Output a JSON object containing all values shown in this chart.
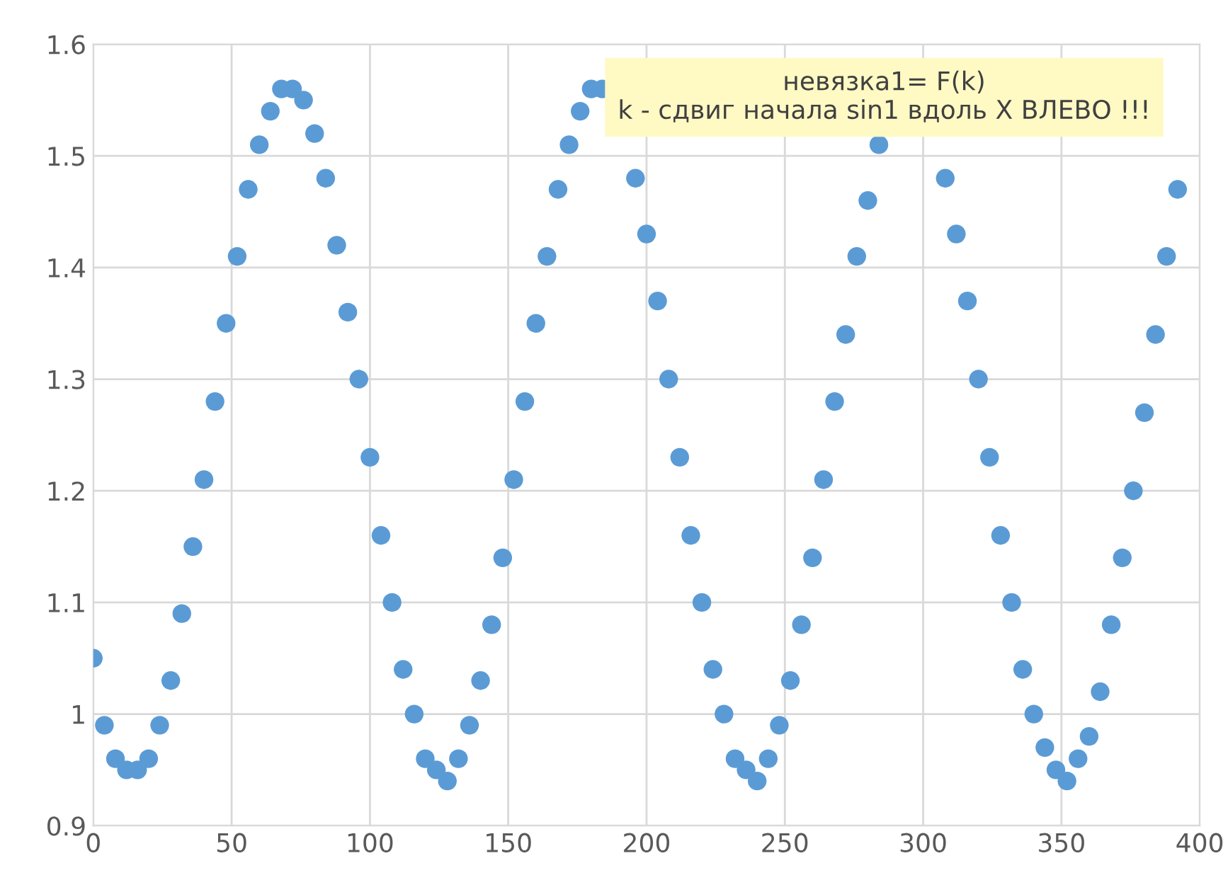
{
  "chart_data": {
    "type": "scatter",
    "annotations": [
      "невязка1= F(k)\nk - сдвиг начала sin1 вдоль X ВЛЕВО !!!"
    ],
    "x": [
      0,
      4,
      8,
      12,
      16,
      20,
      24,
      28,
      32,
      36,
      40,
      44,
      48,
      52,
      56,
      60,
      64,
      68,
      72,
      76,
      80,
      84,
      88,
      92,
      96,
      100,
      104,
      108,
      112,
      116,
      120,
      124,
      128,
      132,
      136,
      140,
      144,
      148,
      152,
      156,
      160,
      164,
      168,
      172,
      176,
      180,
      184,
      188,
      192,
      196,
      200,
      204,
      208,
      212,
      216,
      220,
      224,
      228,
      232,
      236,
      240,
      244,
      248,
      252,
      256,
      260,
      264,
      268,
      272,
      276,
      280,
      284,
      288,
      292,
      296,
      300,
      304,
      308,
      312,
      316,
      320,
      324,
      328,
      332,
      336,
      340,
      344,
      348,
      352,
      356,
      360,
      364,
      368,
      372,
      376,
      380,
      384,
      388,
      392
    ],
    "series": [
      {
        "color": "#5b9bd5",
        "values": [
          1.05,
          0.99,
          0.96,
          0.95,
          0.95,
          0.96,
          0.99,
          1.03,
          1.09,
          1.15,
          1.21,
          1.28,
          1.35,
          1.41,
          1.47,
          1.51,
          1.54,
          1.56,
          1.56,
          1.55,
          1.52,
          1.48,
          1.42,
          1.36,
          1.3,
          1.23,
          1.16,
          1.1,
          1.04,
          1.0,
          0.96,
          0.95,
          0.94,
          0.96,
          0.99,
          1.03,
          1.08,
          1.14,
          1.21,
          1.28,
          1.35,
          1.41,
          1.47,
          1.51,
          1.54,
          1.56,
          1.56,
          null,
          null,
          1.48,
          1.43,
          1.37,
          1.3,
          1.23,
          1.16,
          1.1,
          1.04,
          1.0,
          0.96,
          0.95,
          0.94,
          0.96,
          0.99,
          1.03,
          1.08,
          1.14,
          1.21,
          1.28,
          1.34,
          1.41,
          1.46,
          1.51,
          null,
          null,
          null,
          null,
          null,
          1.48,
          1.43,
          1.37,
          1.3,
          1.23,
          1.16,
          1.1,
          1.04,
          1.0,
          0.97,
          0.95,
          0.94,
          0.96,
          0.98,
          1.02,
          1.08,
          1.14,
          1.2,
          1.27,
          1.34,
          1.41,
          1.47
        ]
      }
    ],
    "marker": "circle",
    "grid": true,
    "legend": false,
    "xlim": [
      0,
      400
    ],
    "xticks": [
      0,
      50,
      100,
      150,
      200,
      250,
      300,
      350,
      400
    ],
    "ylim": [
      0.9,
      1.6
    ],
    "yticks": [
      0.9,
      1,
      1.1,
      1.2,
      1.3,
      1.4,
      1.5,
      1.6
    ]
  }
}
